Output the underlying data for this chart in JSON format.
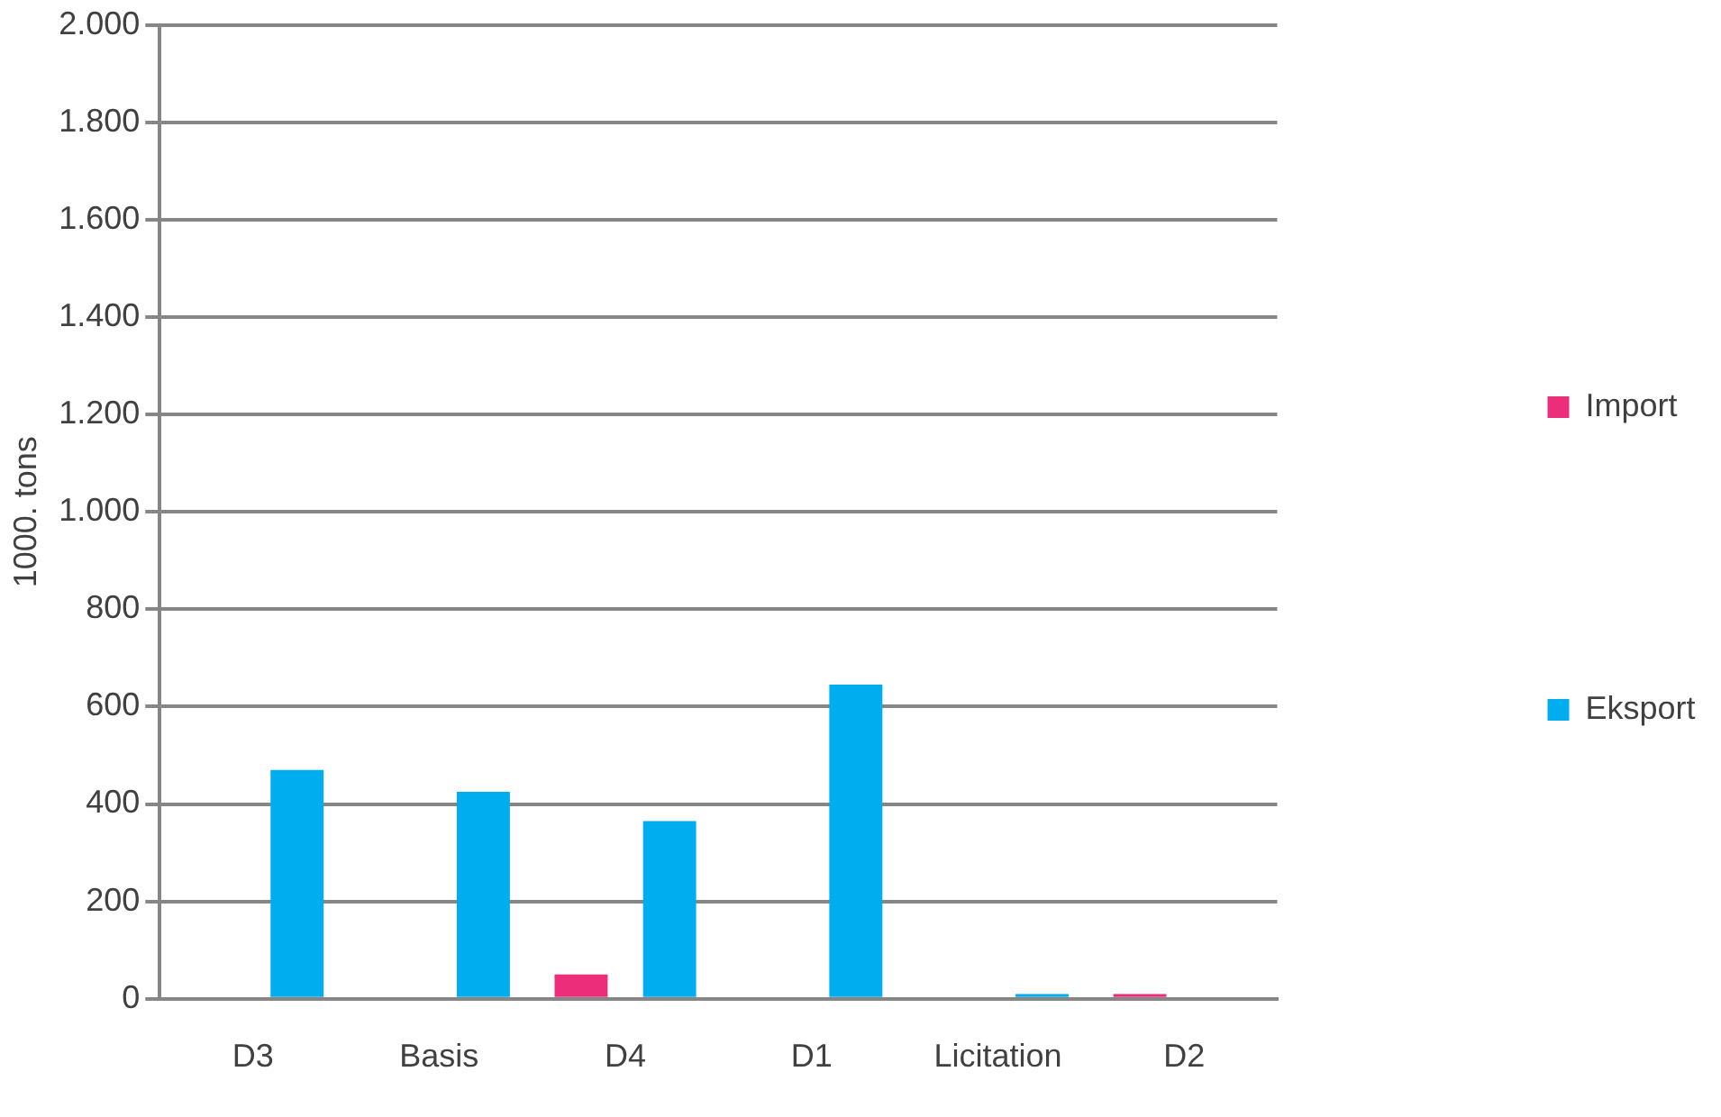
{
  "chart_data": {
    "type": "bar",
    "ylabel": "1000. tons",
    "categories": [
      "D3",
      "Basis",
      "D4",
      "D1",
      "Licitation",
      "D2"
    ],
    "series": [
      {
        "name": "Import",
        "color": "#ec2d7a",
        "values": [
          0,
          0,
          50,
          0,
          0,
          10
        ]
      },
      {
        "name": "Eksport",
        "color": "#00adef",
        "values": [
          470,
          425,
          365,
          645,
          10,
          0
        ]
      }
    ],
    "ylim": [
      0,
      2000
    ],
    "yticks": [
      {
        "value": 0,
        "label": "0"
      },
      {
        "value": 200,
        "label": "200"
      },
      {
        "value": 400,
        "label": "400"
      },
      {
        "value": 600,
        "label": "600"
      },
      {
        "value": 800,
        "label": "800"
      },
      {
        "value": 1000,
        "label": "1.000"
      },
      {
        "value": 1200,
        "label": "1.200"
      },
      {
        "value": 1400,
        "label": "1.400"
      },
      {
        "value": 1600,
        "label": "1.600"
      },
      {
        "value": 1800,
        "label": "1.800"
      },
      {
        "value": 2000,
        "label": "2.000"
      }
    ],
    "grid": "y",
    "legend": "right"
  }
}
